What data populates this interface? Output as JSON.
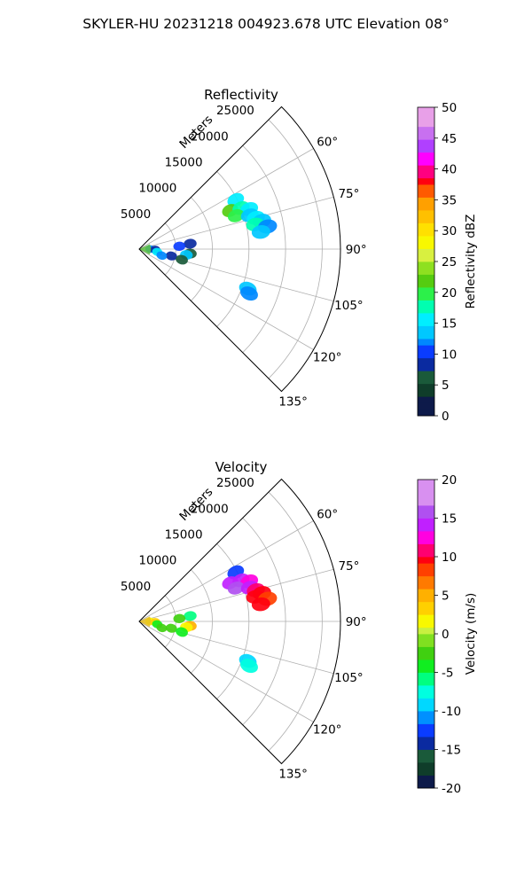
{
  "figure": {
    "title": "SKYLER-HU  20231218  004923.678 UTC Elevation 08°"
  },
  "chart_data": [
    {
      "type": "heatmap",
      "subtype": "polar-sector",
      "title": "Reflectivity",
      "range_label": "Meters",
      "range_ticks": [
        5000,
        10000,
        15000,
        20000,
        25000
      ],
      "range_max": 27500,
      "azimuth_range_deg": [
        45,
        135
      ],
      "azimuth_ticks": [
        "60°",
        "75°",
        "90°",
        "105°",
        "120°",
        "135°"
      ],
      "colorbar": {
        "label": "Reflectivity dBZ",
        "min": 0,
        "max": 50,
        "ticks": [
          "0",
          "5",
          "10",
          "15",
          "20",
          "25",
          "30",
          "35",
          "40",
          "45",
          "50"
        ]
      },
      "echoes": [
        {
          "az": 63,
          "r": 14800,
          "value": 17
        },
        {
          "az": 67,
          "r": 13500,
          "value": 22
        },
        {
          "az": 68,
          "r": 15000,
          "value": 18
        },
        {
          "az": 70,
          "r": 16000,
          "value": 16
        },
        {
          "az": 71,
          "r": 14000,
          "value": 20
        },
        {
          "az": 73,
          "r": 15800,
          "value": 15
        },
        {
          "az": 75,
          "r": 16500,
          "value": 17
        },
        {
          "az": 77,
          "r": 17200,
          "value": 14
        },
        {
          "az": 78,
          "r": 16200,
          "value": 19
        },
        {
          "az": 80,
          "r": 17800,
          "value": 13
        },
        {
          "az": 82,
          "r": 16800,
          "value": 15
        },
        {
          "az": 84,
          "r": 7000,
          "value": 8
        },
        {
          "az": 86,
          "r": 5500,
          "value": 11
        },
        {
          "az": 90,
          "r": 1500,
          "value": 12
        },
        {
          "az": 92,
          "r": 2200,
          "value": 9
        },
        {
          "az": 95,
          "r": 7000,
          "value": 7
        },
        {
          "az": 97,
          "r": 6500,
          "value": 14
        },
        {
          "az": 99,
          "r": 2500,
          "value": 16
        },
        {
          "az": 102,
          "r": 4500,
          "value": 8
        },
        {
          "az": 104,
          "r": 6000,
          "value": 6
        },
        {
          "az": 106,
          "r": 3200,
          "value": 12
        },
        {
          "az": 110,
          "r": 15800,
          "value": 15
        },
        {
          "az": 112,
          "r": 16200,
          "value": 13
        }
      ]
    },
    {
      "type": "heatmap",
      "subtype": "polar-sector",
      "title": "Velocity",
      "range_label": "Meters",
      "range_ticks": [
        5000,
        10000,
        15000,
        20000,
        25000
      ],
      "range_max": 27500,
      "azimuth_range_deg": [
        45,
        135
      ],
      "azimuth_ticks": [
        "60°",
        "75°",
        "90°",
        "105°",
        "120°",
        "135°"
      ],
      "colorbar": {
        "label": "Velocity (m/s)",
        "min": -20,
        "max": 20,
        "ticks": [
          "-20",
          "-15",
          "-10",
          "-5",
          "0",
          "5",
          "10",
          "15",
          "20"
        ]
      },
      "echoes": [
        {
          "az": 63,
          "r": 14800,
          "value": -12
        },
        {
          "az": 67,
          "r": 13500,
          "value": 14
        },
        {
          "az": 68,
          "r": 15000,
          "value": 15
        },
        {
          "az": 70,
          "r": 16000,
          "value": 13
        },
        {
          "az": 71,
          "r": 14000,
          "value": 16
        },
        {
          "az": 73,
          "r": 15800,
          "value": 14
        },
        {
          "az": 75,
          "r": 16500,
          "value": 11
        },
        {
          "az": 77,
          "r": 17200,
          "value": 9
        },
        {
          "az": 78,
          "r": 16200,
          "value": 10
        },
        {
          "az": 80,
          "r": 17800,
          "value": 8
        },
        {
          "az": 82,
          "r": 16800,
          "value": 9
        },
        {
          "az": 84,
          "r": 7000,
          "value": -6
        },
        {
          "az": 86,
          "r": 5500,
          "value": -3
        },
        {
          "az": 90,
          "r": 1500,
          "value": 2
        },
        {
          "az": 92,
          "r": 2200,
          "value": 3
        },
        {
          "az": 95,
          "r": 7000,
          "value": 5
        },
        {
          "az": 97,
          "r": 6500,
          "value": 2
        },
        {
          "az": 99,
          "r": 2500,
          "value": -4
        },
        {
          "az": 102,
          "r": 4500,
          "value": -3
        },
        {
          "az": 104,
          "r": 6000,
          "value": -4
        },
        {
          "az": 106,
          "r": 3200,
          "value": -2
        },
        {
          "az": 110,
          "r": 15800,
          "value": -9
        },
        {
          "az": 112,
          "r": 16200,
          "value": -8
        }
      ]
    }
  ]
}
